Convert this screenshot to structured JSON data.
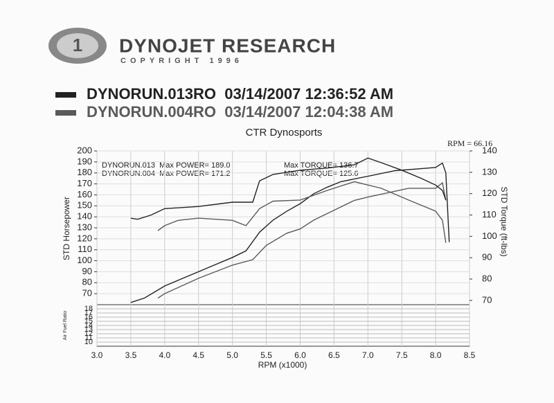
{
  "chart_data": {
    "type": "line",
    "logo_title": "DYNOJET RESEARCH",
    "logo_subtitle": "COPYRIGHT 1996",
    "runs": [
      {
        "label": "DYNORUN.013RO  03/14/2007 12:36:52 AM",
        "color": "#222222"
      },
      {
        "label": "DYNORUN.004RO  03/14/2007 12:04:38 AM",
        "color": "#5a5a5a"
      }
    ],
    "title": "CTR Dynosports",
    "rpm_note": "RPM = 66.16",
    "annotations": [
      "DYNORUN.013  Max POWER= 189.0",
      "DYNORUN.004  Max POWER= 171.2",
      "Max TORQUE= 136.7",
      "Max TORQUE= 125.6"
    ],
    "xlabel": "RPM (x1000)",
    "ylabel": "STD Horsepower",
    "y2label": "STD Torque (ft-lbs)",
    "xlim": [
      3.0,
      8.5
    ],
    "xticks": [
      {
        "value": 3,
        "label": "3.0"
      },
      3.5,
      {
        "value": 4,
        "label": "4.0"
      },
      4.5,
      {
        "value": 5,
        "label": "5.0"
      },
      5.5,
      {
        "value": 6,
        "label": "6.0"
      },
      6.5,
      {
        "value": 7,
        "label": "7.0"
      },
      7.5,
      {
        "value": 8,
        "label": "8.0"
      },
      8.5
    ],
    "ylim": [
      60,
      200
    ],
    "yticks": [
      70,
      80,
      90,
      100,
      110,
      120,
      130,
      140,
      150,
      160,
      170,
      180,
      190,
      200
    ],
    "y2lim": [
      68,
      140
    ],
    "y2ticks": [
      70,
      80,
      90,
      100,
      110,
      120,
      130,
      140
    ],
    "grid": true,
    "afr_panel": {
      "ylabel": "Air Fuel Ratio",
      "ylim": [
        9,
        19
      ],
      "yticks": [
        10,
        11,
        12,
        13,
        14,
        15,
        16,
        17,
        18
      ]
    },
    "series": [
      {
        "color": "#222222",
        "axis": "y",
        "x": [
          3.5,
          3.7,
          4.0,
          4.5,
          5.0,
          5.2,
          5.4,
          5.6,
          5.8,
          6.0,
          6.2,
          6.4,
          6.6,
          7.0,
          7.4,
          7.8,
          8.0,
          8.1,
          8.15,
          8.2
        ],
        "values": [
          62,
          66,
          77,
          90,
          103,
          109,
          126,
          137,
          145,
          152,
          161,
          167,
          172,
          177,
          182,
          184,
          185,
          189,
          180,
          117
        ]
      },
      {
        "color": "#5a5a5a",
        "axis": "y",
        "x": [
          3.9,
          4.0,
          4.5,
          5.0,
          5.3,
          5.5,
          5.8,
          6.0,
          6.2,
          6.5,
          6.8,
          7.0,
          7.3,
          7.6,
          8.0,
          8.1,
          8.15
        ],
        "values": [
          66,
          70,
          84,
          96,
          101,
          114,
          125,
          129,
          137,
          146,
          155,
          158,
          162,
          166,
          166,
          171,
          155
        ]
      },
      {
        "color": "#222222",
        "axis": "y2",
        "x": [
          3.5,
          3.6,
          3.8,
          4.0,
          4.5,
          5.0,
          5.3,
          5.4,
          5.6,
          6.0,
          6.4,
          6.8,
          7.0,
          7.2,
          7.5,
          7.8,
          8.0,
          8.1,
          8.15
        ],
        "values": [
          108.5,
          108,
          110,
          113,
          114,
          116,
          116,
          126,
          129,
          131,
          132,
          133.5,
          136.7,
          134.5,
          131,
          127,
          124,
          121.5,
          117
        ]
      },
      {
        "color": "#5a5a5a",
        "axis": "y2",
        "x": [
          3.9,
          4.0,
          4.2,
          4.5,
          5.0,
          5.2,
          5.4,
          5.6,
          6.0,
          6.4,
          6.8,
          7.2,
          7.6,
          8.0,
          8.1,
          8.15
        ],
        "values": [
          102.7,
          105,
          107.5,
          108.5,
          107.5,
          105,
          113,
          116.5,
          117,
          121.5,
          125.6,
          122.5,
          117,
          111.8,
          107.5,
          97
        ]
      }
    ]
  }
}
